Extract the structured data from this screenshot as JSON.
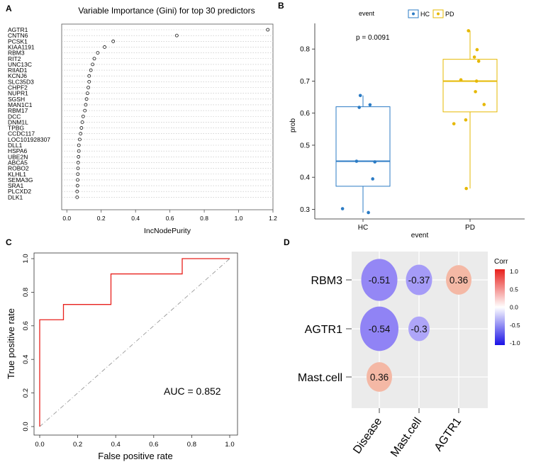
{
  "panels": {
    "a": "A",
    "b": "B",
    "c": "C",
    "d": "D"
  },
  "colors": {
    "hc": "#2b7bc4",
    "pd": "#e6b800",
    "roc": "#e8201c",
    "neg": "#6d5cf2",
    "pos": "#ef9a80"
  },
  "chart_data": [
    {
      "type": "scatter",
      "name": "variable_importance",
      "title": "Variable Importance (Gini) for top 30 predictors",
      "xlabel": "IncNodePurity",
      "xlim": [
        -0.03,
        1.2
      ],
      "xticks": [
        "0.0",
        "0.2",
        "0.4",
        "0.6",
        "0.8",
        "1.0",
        "1.2"
      ],
      "xtick_values": [
        0.0,
        0.2,
        0.4,
        0.6,
        0.8,
        1.0,
        1.2
      ],
      "genes": [
        "AGTR1",
        "CNTN6",
        "PCSK1",
        "KIAA1191",
        "RBM3",
        "RIT2",
        "UNC13C",
        "RIIAD1",
        "KCNJ6",
        "SLC35D3",
        "CHPF2",
        "NUPR1",
        "SGSH",
        "MAN1C1",
        "RBM17",
        "DCC",
        "DNM1L",
        "TPBG",
        "CCDC117",
        "LOC101928307",
        "DLL1",
        "HSPA6",
        "UBE2N",
        "ABCA5",
        "ROBO2",
        "KLHL1",
        "SEMA3G",
        "SRA1",
        "PLCXD2",
        "DLK1"
      ],
      "values": [
        1.17,
        0.64,
        0.27,
        0.22,
        0.18,
        0.16,
        0.15,
        0.14,
        0.13,
        0.13,
        0.125,
        0.12,
        0.115,
        0.11,
        0.105,
        0.095,
        0.09,
        0.085,
        0.08,
        0.075,
        0.07,
        0.07,
        0.068,
        0.066,
        0.065,
        0.064,
        0.063,
        0.062,
        0.06,
        0.06
      ]
    },
    {
      "type": "boxplot",
      "name": "prob_by_event",
      "legend_title": "event",
      "legend": [
        "HC",
        "PD"
      ],
      "annotation": "p = 0.0091",
      "xlabel": "event",
      "ylabel": "prob",
      "ylim": [
        0.27,
        0.88
      ],
      "yticks": [
        "0.3",
        "0.4",
        "0.5",
        "0.6",
        "0.7",
        "0.8"
      ],
      "ytick_values": [
        0.3,
        0.4,
        0.5,
        0.6,
        0.7,
        0.8
      ],
      "categories": [
        "HC",
        "PD"
      ],
      "boxes": [
        {
          "category": "HC",
          "min": 0.29,
          "q1": 0.372,
          "median": 0.45,
          "q3": 0.62,
          "max": 0.655,
          "points": [
            [
              -0.05,
              0.655
            ],
            [
              -0.07,
              0.618
            ],
            [
              0.13,
              0.626
            ],
            [
              -0.12,
              0.45
            ],
            [
              0.22,
              0.448
            ],
            [
              0.18,
              0.395
            ],
            [
              -0.38,
              0.302
            ],
            [
              0.1,
              0.29
            ]
          ]
        },
        {
          "category": "PD",
          "min": 0.365,
          "q1": 0.604,
          "median": 0.7,
          "q3": 0.768,
          "max": 0.857,
          "points": [
            [
              -0.03,
              0.857
            ],
            [
              0.13,
              0.798
            ],
            [
              0.08,
              0.775
            ],
            [
              0.16,
              0.762
            ],
            [
              -0.17,
              0.704
            ],
            [
              0.12,
              0.7
            ],
            [
              0.1,
              0.667
            ],
            [
              0.26,
              0.627
            ],
            [
              -0.08,
              0.579
            ],
            [
              -0.3,
              0.567
            ],
            [
              -0.07,
              0.365
            ]
          ]
        }
      ]
    },
    {
      "type": "line",
      "name": "roc_curve",
      "xlabel": "False positive rate",
      "ylabel": "True positive rate",
      "xlim": [
        0,
        1
      ],
      "ylim": [
        0,
        1
      ],
      "xticks": [
        "0.0",
        "0.2",
        "0.4",
        "0.6",
        "0.8",
        "1.0"
      ],
      "yticks": [
        "0.0",
        "0.2",
        "0.4",
        "0.6",
        "0.8",
        "1.0"
      ],
      "tick_values": [
        0.0,
        0.2,
        0.4,
        0.6,
        0.8,
        1.0
      ],
      "annotation": "AUC = 0.852",
      "roc_points": [
        [
          0,
          0
        ],
        [
          0,
          0.636
        ],
        [
          0.125,
          0.636
        ],
        [
          0.125,
          0.727
        ],
        [
          0.375,
          0.727
        ],
        [
          0.375,
          0.909
        ],
        [
          0.75,
          0.909
        ],
        [
          0.75,
          1.0
        ],
        [
          1.0,
          1.0
        ]
      ]
    },
    {
      "type": "heatmap",
      "name": "correlation",
      "legend_title": "Corr",
      "legend_ticks": [
        "1.0",
        "0.5",
        "0.0",
        "-0.5",
        "-1.0"
      ],
      "legend_tick_values": [
        1.0,
        0.5,
        0.0,
        -0.5,
        -1.0
      ],
      "rows": [
        "RBM3",
        "AGTR1",
        "Mast.cell"
      ],
      "cols": [
        "Disease",
        "Mast.cell",
        "AGTR1"
      ],
      "cells": [
        {
          "row": 0,
          "col": 0,
          "value": -0.51,
          "label": "-0.51"
        },
        {
          "row": 0,
          "col": 1,
          "value": -0.37,
          "label": "-0.37"
        },
        {
          "row": 0,
          "col": 2,
          "value": 0.36,
          "label": "0.36"
        },
        {
          "row": 1,
          "col": 0,
          "value": -0.54,
          "label": "-0.54"
        },
        {
          "row": 1,
          "col": 1,
          "value": -0.3,
          "label": "-0.3"
        },
        {
          "row": 2,
          "col": 0,
          "value": 0.36,
          "label": "0.36"
        }
      ]
    }
  ]
}
